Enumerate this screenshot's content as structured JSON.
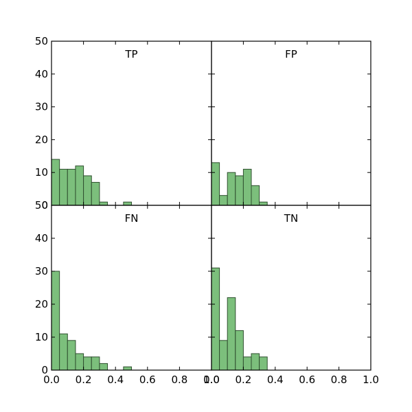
{
  "chart_data": [
    {
      "type": "bar",
      "title": "TP",
      "bar_color": "#7cbf7c",
      "bin_width": 0.05,
      "bin_starts": [
        0.0,
        0.05,
        0.1,
        0.15,
        0.2,
        0.25,
        0.3,
        0.35,
        0.4,
        0.45
      ],
      "values": [
        14,
        11,
        11,
        12,
        9,
        7,
        1,
        0,
        0,
        1
      ],
      "xlim": [
        0,
        1
      ],
      "ylim": [
        0,
        50
      ],
      "x_ticks": [
        "0.0",
        "0.2",
        "0.4",
        "0.6",
        "0.8",
        "1.0"
      ],
      "y_ticks": [
        "0",
        "10",
        "20",
        "30",
        "40",
        "50"
      ],
      "grid": false
    },
    {
      "type": "bar",
      "title": "FP",
      "bar_color": "#7cbf7c",
      "bin_width": 0.05,
      "bin_starts": [
        0.0,
        0.05,
        0.1,
        0.15,
        0.2,
        0.25,
        0.3
      ],
      "values": [
        13,
        3,
        10,
        9,
        11,
        6,
        1
      ],
      "xlim": [
        0,
        1
      ],
      "ylim": [
        0,
        50
      ],
      "x_ticks": [
        "0.0",
        "0.2",
        "0.4",
        "0.6",
        "0.8",
        "1.0"
      ],
      "y_ticks": [
        "0",
        "10",
        "20",
        "30",
        "40",
        "50"
      ],
      "grid": false
    },
    {
      "type": "bar",
      "title": "FN",
      "bar_color": "#7cbf7c",
      "bin_width": 0.05,
      "bin_starts": [
        0.0,
        0.05,
        0.1,
        0.15,
        0.2,
        0.25,
        0.3,
        0.35,
        0.4,
        0.45
      ],
      "values": [
        30,
        11,
        9,
        5,
        4,
        4,
        2,
        0,
        0,
        1
      ],
      "xlim": [
        0,
        1
      ],
      "ylim": [
        0,
        50
      ],
      "x_ticks": [
        "0.0",
        "0.2",
        "0.4",
        "0.6",
        "0.8",
        "1.0"
      ],
      "y_ticks": [
        "0",
        "10",
        "20",
        "30",
        "40",
        "50"
      ],
      "grid": false
    },
    {
      "type": "bar",
      "title": "TN",
      "bar_color": "#7cbf7c",
      "bin_width": 0.05,
      "bin_starts": [
        0.0,
        0.05,
        0.1,
        0.15,
        0.2,
        0.25,
        0.3
      ],
      "values": [
        31,
        9,
        22,
        12,
        4,
        5,
        4
      ],
      "xlim": [
        0,
        1
      ],
      "ylim": [
        0,
        50
      ],
      "x_ticks": [
        "0.0",
        "0.2",
        "0.4",
        "0.6",
        "0.8",
        "1.0"
      ],
      "y_ticks": [
        "0",
        "10",
        "20",
        "30",
        "40",
        "50"
      ],
      "grid": false
    }
  ]
}
